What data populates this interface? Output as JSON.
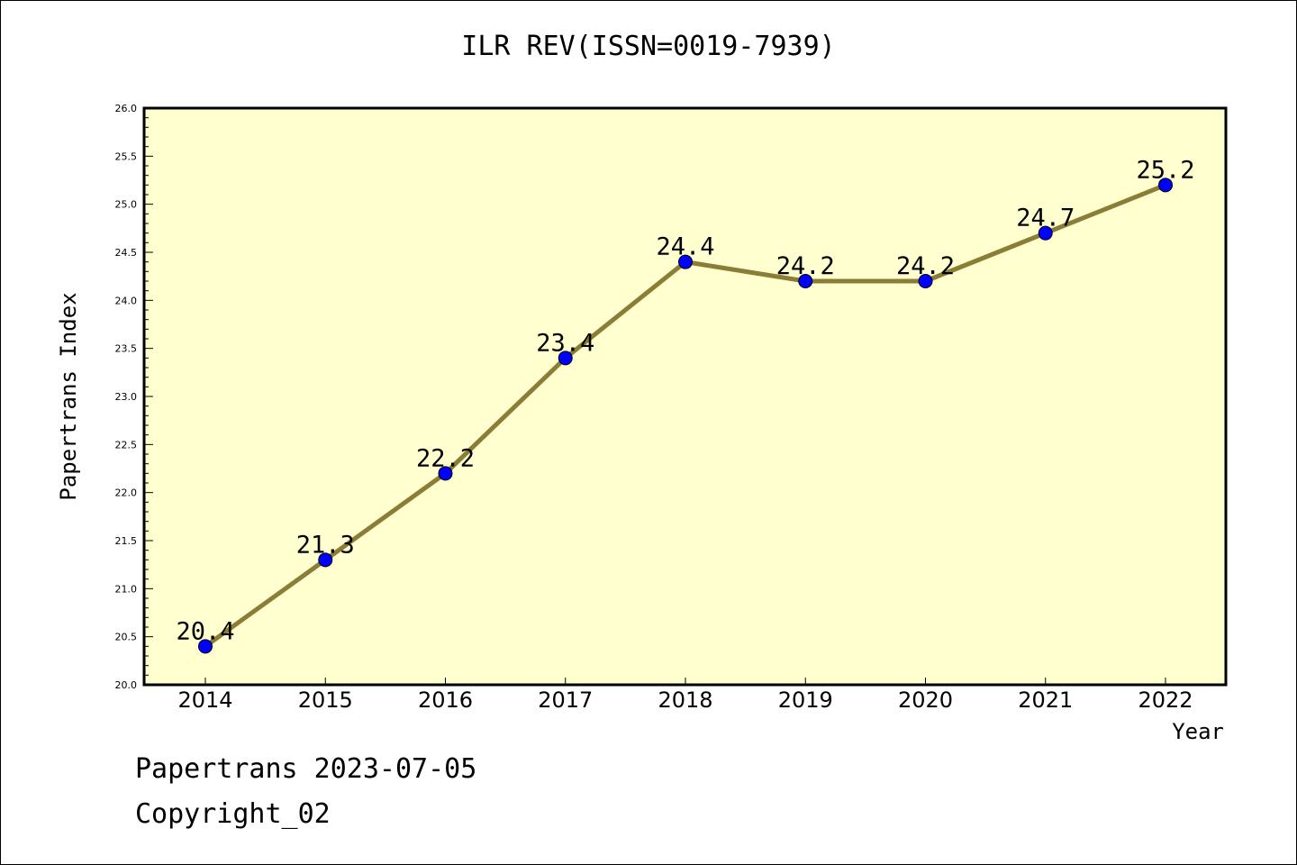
{
  "chart_data": {
    "type": "line",
    "title": "ILR REV(ISSN=0019-7939)",
    "xlabel": "Year",
    "ylabel": "Papertrans Index",
    "categories": [
      "2014",
      "2015",
      "2016",
      "2017",
      "2018",
      "2019",
      "2020",
      "2021",
      "2022"
    ],
    "values": [
      20.4,
      21.3,
      22.2,
      23.4,
      24.4,
      24.2,
      24.2,
      24.7,
      25.2
    ],
    "data_labels": [
      "20.4",
      "21.3",
      "22.2",
      "23.4",
      "24.4",
      "24.2",
      "24.2",
      "24.7",
      "25.2"
    ],
    "ylim": [
      20.0,
      26.0
    ],
    "yticks": [
      "20.0",
      "20.5",
      "21.0",
      "21.5",
      "22.0",
      "22.5",
      "23.0",
      "23.5",
      "24.0",
      "24.5",
      "25.0",
      "25.5",
      "26.0"
    ],
    "grid": false,
    "colors": {
      "plot_background": "#ffffd0",
      "line": "#8b7d35",
      "marker": "#0000ff"
    }
  },
  "footer": {
    "line1": "Papertrans 2023-07-05",
    "line2": "Copyright_02"
  }
}
